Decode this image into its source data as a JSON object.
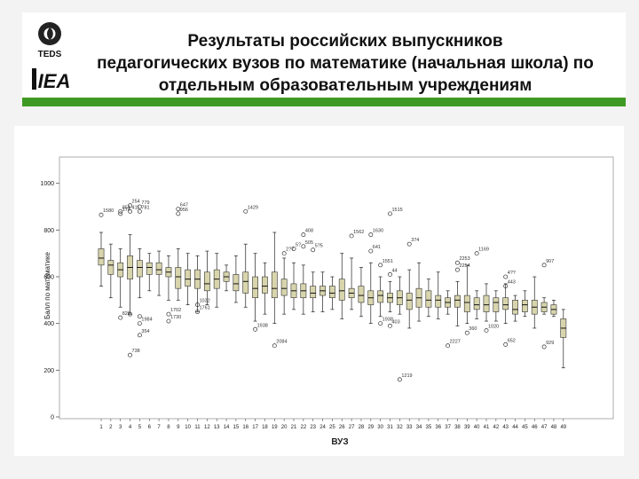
{
  "slide": {
    "title_lines": [
      "Результаты российских выпускников",
      "педагогических вузов по математике (начальная школа) по",
      "отдельным образовательным учреждениям"
    ],
    "logos": [
      "TEDS",
      "IEA"
    ],
    "colors": {
      "accent": "#3f9a24",
      "box_fill": "#d8d5ad",
      "outlier": "#333333"
    }
  },
  "chart_data": {
    "type": "boxplot",
    "title": "",
    "xlabel": "ВУЗ",
    "ylabel": "Балл по математике",
    "ylim": [
      0,
      1100
    ],
    "yticks": [
      0,
      200,
      400,
      600,
      800,
      1000
    ],
    "grid": false,
    "categories": [
      "1",
      "2",
      "3",
      "4",
      "5",
      "6",
      "7",
      "8",
      "9",
      "10",
      "11",
      "12",
      "13",
      "14",
      "15",
      "16",
      "17",
      "18",
      "19",
      "20",
      "21",
      "22",
      "23",
      "24",
      "25",
      "26",
      "27",
      "28",
      "29",
      "30",
      "31",
      "32",
      "33",
      "34",
      "35",
      "36",
      "37",
      "38",
      "39",
      "40",
      "41",
      "42",
      "43",
      "44",
      "45",
      "46",
      "47",
      "48",
      "49"
    ],
    "boxes": [
      {
        "min": 560,
        "q1": 650,
        "median": 680,
        "q3": 720,
        "max": 790
      },
      {
        "min": 510,
        "q1": 610,
        "median": 650,
        "q3": 670,
        "max": 740
      },
      {
        "min": 470,
        "q1": 600,
        "median": 630,
        "q3": 660,
        "max": 720
      },
      {
        "min": 440,
        "q1": 590,
        "median": 640,
        "q3": 690,
        "max": 780
      },
      {
        "min": 510,
        "q1": 600,
        "median": 640,
        "q3": 670,
        "max": 720
      },
      {
        "min": 540,
        "q1": 610,
        "median": 640,
        "q3": 660,
        "max": 700
      },
      {
        "min": 520,
        "q1": 610,
        "median": 630,
        "q3": 660,
        "max": 710
      },
      {
        "min": 500,
        "q1": 600,
        "median": 620,
        "q3": 640,
        "max": 690
      },
      {
        "min": 500,
        "q1": 550,
        "median": 600,
        "q3": 640,
        "max": 720
      },
      {
        "min": 480,
        "q1": 560,
        "median": 590,
        "q3": 630,
        "max": 700
      },
      {
        "min": 450,
        "q1": 550,
        "median": 590,
        "q3": 630,
        "max": 690
      },
      {
        "min": 480,
        "q1": 540,
        "median": 570,
        "q3": 620,
        "max": 710
      },
      {
        "min": 470,
        "q1": 550,
        "median": 590,
        "q3": 630,
        "max": 700
      },
      {
        "min": 540,
        "q1": 580,
        "median": 600,
        "q3": 620,
        "max": 650
      },
      {
        "min": 490,
        "q1": 540,
        "median": 570,
        "q3": 610,
        "max": 690
      },
      {
        "min": 470,
        "q1": 530,
        "median": 580,
        "q3": 620,
        "max": 740
      },
      {
        "min": 410,
        "q1": 510,
        "median": 550,
        "q3": 600,
        "max": 700
      },
      {
        "min": 440,
        "q1": 530,
        "median": 560,
        "q3": 600,
        "max": 660
      },
      {
        "min": 400,
        "q1": 510,
        "median": 550,
        "q3": 620,
        "max": 790
      },
      {
        "min": 440,
        "q1": 520,
        "median": 550,
        "q3": 590,
        "max": 680
      },
      {
        "min": 460,
        "q1": 510,
        "median": 540,
        "q3": 570,
        "max": 660
      },
      {
        "min": 440,
        "q1": 510,
        "median": 540,
        "q3": 570,
        "max": 650
      },
      {
        "min": 450,
        "q1": 510,
        "median": 530,
        "q3": 560,
        "max": 620
      },
      {
        "min": 450,
        "q1": 520,
        "median": 540,
        "q3": 560,
        "max": 620
      },
      {
        "min": 460,
        "q1": 510,
        "median": 530,
        "q3": 560,
        "max": 600
      },
      {
        "min": 420,
        "q1": 500,
        "median": 540,
        "q3": 590,
        "max": 700
      },
      {
        "min": 460,
        "q1": 510,
        "median": 530,
        "q3": 550,
        "max": 680
      },
      {
        "min": 430,
        "q1": 490,
        "median": 520,
        "q3": 560,
        "max": 640
      },
      {
        "min": 400,
        "q1": 480,
        "median": 510,
        "q3": 540,
        "max": 660
      },
      {
        "min": 430,
        "q1": 490,
        "median": 520,
        "q3": 540,
        "max": 600
      },
      {
        "min": 450,
        "q1": 490,
        "median": 510,
        "q3": 530,
        "max": 580
      },
      {
        "min": 440,
        "q1": 480,
        "median": 510,
        "q3": 540,
        "max": 600
      },
      {
        "min": 380,
        "q1": 460,
        "median": 500,
        "q3": 530,
        "max": 630
      },
      {
        "min": 410,
        "q1": 470,
        "median": 510,
        "q3": 550,
        "max": 660
      },
      {
        "min": 430,
        "q1": 470,
        "median": 500,
        "q3": 540,
        "max": 590
      },
      {
        "min": 420,
        "q1": 470,
        "median": 500,
        "q3": 520,
        "max": 620
      },
      {
        "min": 440,
        "q1": 470,
        "median": 490,
        "q3": 510,
        "max": 540
      },
      {
        "min": 390,
        "q1": 470,
        "median": 500,
        "q3": 520,
        "max": 580
      },
      {
        "min": 400,
        "q1": 450,
        "median": 490,
        "q3": 520,
        "max": 650
      },
      {
        "min": 420,
        "q1": 460,
        "median": 480,
        "q3": 510,
        "max": 540
      },
      {
        "min": 410,
        "q1": 450,
        "median": 480,
        "q3": 520,
        "max": 570
      },
      {
        "min": 410,
        "q1": 450,
        "median": 490,
        "q3": 510,
        "max": 540
      },
      {
        "min": 400,
        "q1": 460,
        "median": 480,
        "q3": 510,
        "max": 570
      },
      {
        "min": 410,
        "q1": 440,
        "median": 460,
        "q3": 500,
        "max": 520
      },
      {
        "min": 430,
        "q1": 450,
        "median": 480,
        "q3": 500,
        "max": 540
      },
      {
        "min": 380,
        "q1": 440,
        "median": 470,
        "q3": 500,
        "max": 600
      },
      {
        "min": 440,
        "q1": 450,
        "median": 470,
        "q3": 490,
        "max": 510
      },
      {
        "min": 430,
        "q1": 440,
        "median": 460,
        "q3": 480,
        "max": 500
      },
      {
        "min": 210,
        "q1": 340,
        "median": 380,
        "q3": 420,
        "max": 460
      }
    ],
    "outliers": [
      {
        "cat": 1,
        "value": 865,
        "label": "1580"
      },
      {
        "cat": 3,
        "value": 880,
        "label": "854"
      },
      {
        "cat": 3,
        "value": 870,
        "label": "174"
      },
      {
        "cat": 3,
        "value": 425,
        "label": "820"
      },
      {
        "cat": 4,
        "value": 905,
        "label": "254"
      },
      {
        "cat": 4,
        "value": 880,
        "label": "411"
      },
      {
        "cat": 4,
        "value": 265,
        "label": "738"
      },
      {
        "cat": 4,
        "value": 440,
        "label": ""
      },
      {
        "cat": 5,
        "value": 900,
        "label": "779"
      },
      {
        "cat": 5,
        "value": 880,
        "label": "781"
      },
      {
        "cat": 5,
        "value": 400,
        "label": "1984"
      },
      {
        "cat": 5,
        "value": 350,
        "label": "354"
      },
      {
        "cat": 5,
        "value": 430,
        "label": ""
      },
      {
        "cat": 8,
        "value": 440,
        "label": "1702"
      },
      {
        "cat": 8,
        "value": 410,
        "label": "1730"
      },
      {
        "cat": 9,
        "value": 890,
        "label": "647"
      },
      {
        "cat": 9,
        "value": 870,
        "label": "956"
      },
      {
        "cat": 11,
        "value": 480,
        "label": "1032"
      },
      {
        "cat": 11,
        "value": 450,
        "label": "1761"
      },
      {
        "cat": 16,
        "value": 880,
        "label": "1429"
      },
      {
        "cat": 17,
        "value": 375,
        "label": "1938"
      },
      {
        "cat": 19,
        "value": 305,
        "label": "2084"
      },
      {
        "cat": 20,
        "value": 700,
        "label": "2?7"
      },
      {
        "cat": 21,
        "value": 720,
        "label": "5?"
      },
      {
        "cat": 22,
        "value": 780,
        "label": "408"
      },
      {
        "cat": 22,
        "value": 730,
        "label": "505"
      },
      {
        "cat": 23,
        "value": 715,
        "label": "5?5"
      },
      {
        "cat": 27,
        "value": 775,
        "label": "1562"
      },
      {
        "cat": 29,
        "value": 780,
        "label": "1630"
      },
      {
        "cat": 29,
        "value": 710,
        "label": "641"
      },
      {
        "cat": 30,
        "value": 650,
        "label": "1551"
      },
      {
        "cat": 30,
        "value": 400,
        "label": "1938"
      },
      {
        "cat": 31,
        "value": 870,
        "label": "1515"
      },
      {
        "cat": 31,
        "value": 610,
        "label": "44"
      },
      {
        "cat": 31,
        "value": 390,
        "label": "403"
      },
      {
        "cat": 32,
        "value": 160,
        "label": "1219"
      },
      {
        "cat": 33,
        "value": 740,
        "label": "374"
      },
      {
        "cat": 37,
        "value": 305,
        "label": "2227"
      },
      {
        "cat": 38,
        "value": 660,
        "label": "2253"
      },
      {
        "cat": 38,
        "value": 630,
        "label": "2254"
      },
      {
        "cat": 39,
        "value": 360,
        "label": "360"
      },
      {
        "cat": 40,
        "value": 700,
        "label": "1169"
      },
      {
        "cat": 41,
        "value": 370,
        "label": "1020"
      },
      {
        "cat": 43,
        "value": 600,
        "label": "4??"
      },
      {
        "cat": 43,
        "value": 560,
        "label": "443"
      },
      {
        "cat": 43,
        "value": 310,
        "label": "652"
      },
      {
        "cat": 47,
        "value": 650,
        "label": "907"
      },
      {
        "cat": 47,
        "value": 300,
        "label": "929"
      }
    ]
  }
}
